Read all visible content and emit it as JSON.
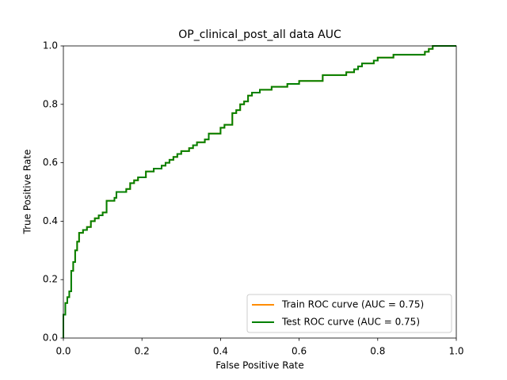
{
  "chart_data": {
    "type": "line",
    "title": "OP_clinical_post_all data AUC",
    "x_label": "False Positive Rate",
    "y_label": "True Positive Rate",
    "xlim": [
      0,
      1
    ],
    "ylim": [
      0,
      1
    ],
    "xticks": [
      {
        "value": 0,
        "label": "0.0"
      },
      0.2,
      0.4,
      0.6,
      0.8,
      {
        "value": 1,
        "label": "1.0"
      }
    ],
    "yticks": [
      {
        "value": 0,
        "label": "0.0"
      },
      0.2,
      0.4,
      0.6,
      0.8,
      {
        "value": 1,
        "label": "1.0"
      }
    ],
    "legend": "lower right",
    "x": [
      0,
      0,
      0.005,
      0.005,
      0.01,
      0.01,
      0.015,
      0.015,
      0.02,
      0.02,
      0.025,
      0.025,
      0.03,
      0.03,
      0.035,
      0.035,
      0.04,
      0.04,
      0.05,
      0.05,
      0.06,
      0.06,
      0.07,
      0.07,
      0.08,
      0.08,
      0.09,
      0.09,
      0.1,
      0.1,
      0.11,
      0.11,
      0.13,
      0.13,
      0.135,
      0.135,
      0.16,
      0.16,
      0.17,
      0.17,
      0.18,
      0.18,
      0.19,
      0.19,
      0.21,
      0.21,
      0.23,
      0.23,
      0.25,
      0.25,
      0.26,
      0.26,
      0.27,
      0.27,
      0.28,
      0.28,
      0.29,
      0.29,
      0.3,
      0.3,
      0.32,
      0.32,
      0.33,
      0.33,
      0.34,
      0.34,
      0.36,
      0.36,
      0.37,
      0.37,
      0.4,
      0.4,
      0.41,
      0.41,
      0.43,
      0.43,
      0.44,
      0.44,
      0.45,
      0.45,
      0.46,
      0.46,
      0.47,
      0.47,
      0.48,
      0.48,
      0.5,
      0.5,
      0.53,
      0.53,
      0.57,
      0.57,
      0.6,
      0.6,
      0.66,
      0.66,
      0.72,
      0.72,
      0.74,
      0.74,
      0.75,
      0.75,
      0.76,
      0.76,
      0.79,
      0.79,
      0.8,
      0.8,
      0.84,
      0.84,
      0.92,
      0.92,
      0.93,
      0.93,
      0.94,
      0.94,
      1.0
    ],
    "series": [
      {
        "name": "Train ROC curve (AUC = 0.75)",
        "color": "#ff8c00",
        "values": [
          0,
          0.08,
          0.08,
          0.12,
          0.12,
          0.14,
          0.14,
          0.16,
          0.16,
          0.23,
          0.23,
          0.26,
          0.26,
          0.3,
          0.3,
          0.33,
          0.33,
          0.36,
          0.36,
          0.37,
          0.37,
          0.38,
          0.38,
          0.4,
          0.4,
          0.41,
          0.41,
          0.42,
          0.42,
          0.43,
          0.43,
          0.47,
          0.47,
          0.48,
          0.48,
          0.5,
          0.5,
          0.51,
          0.51,
          0.53,
          0.53,
          0.54,
          0.54,
          0.55,
          0.55,
          0.57,
          0.57,
          0.58,
          0.58,
          0.59,
          0.59,
          0.6,
          0.6,
          0.61,
          0.61,
          0.62,
          0.62,
          0.63,
          0.63,
          0.64,
          0.64,
          0.65,
          0.65,
          0.66,
          0.66,
          0.67,
          0.67,
          0.68,
          0.68,
          0.7,
          0.7,
          0.72,
          0.72,
          0.73,
          0.73,
          0.77,
          0.77,
          0.78,
          0.78,
          0.8,
          0.8,
          0.81,
          0.81,
          0.83,
          0.83,
          0.84,
          0.84,
          0.85,
          0.85,
          0.86,
          0.86,
          0.87,
          0.87,
          0.88,
          0.88,
          0.9,
          0.9,
          0.91,
          0.91,
          0.92,
          0.92,
          0.93,
          0.93,
          0.94,
          0.94,
          0.95,
          0.95,
          0.96,
          0.96,
          0.97,
          0.97,
          0.98,
          0.98,
          0.99,
          0.99,
          1.0,
          1.0
        ]
      },
      {
        "name": "Test ROC curve (AUC = 0.75)",
        "color": "#008000",
        "values": [
          0,
          0.08,
          0.08,
          0.12,
          0.12,
          0.14,
          0.14,
          0.16,
          0.16,
          0.23,
          0.23,
          0.26,
          0.26,
          0.3,
          0.3,
          0.33,
          0.33,
          0.36,
          0.36,
          0.37,
          0.37,
          0.38,
          0.38,
          0.4,
          0.4,
          0.41,
          0.41,
          0.42,
          0.42,
          0.43,
          0.43,
          0.47,
          0.47,
          0.48,
          0.48,
          0.5,
          0.5,
          0.51,
          0.51,
          0.53,
          0.53,
          0.54,
          0.54,
          0.55,
          0.55,
          0.57,
          0.57,
          0.58,
          0.58,
          0.59,
          0.59,
          0.6,
          0.6,
          0.61,
          0.61,
          0.62,
          0.62,
          0.63,
          0.63,
          0.64,
          0.64,
          0.65,
          0.65,
          0.66,
          0.66,
          0.67,
          0.67,
          0.68,
          0.68,
          0.7,
          0.7,
          0.72,
          0.72,
          0.73,
          0.73,
          0.77,
          0.77,
          0.78,
          0.78,
          0.8,
          0.8,
          0.81,
          0.81,
          0.83,
          0.83,
          0.84,
          0.84,
          0.85,
          0.85,
          0.86,
          0.86,
          0.87,
          0.87,
          0.88,
          0.88,
          0.9,
          0.9,
          0.91,
          0.91,
          0.92,
          0.92,
          0.93,
          0.93,
          0.94,
          0.94,
          0.95,
          0.95,
          0.96,
          0.96,
          0.97,
          0.97,
          0.98,
          0.98,
          0.99,
          0.99,
          1.0,
          1.0
        ]
      }
    ]
  }
}
